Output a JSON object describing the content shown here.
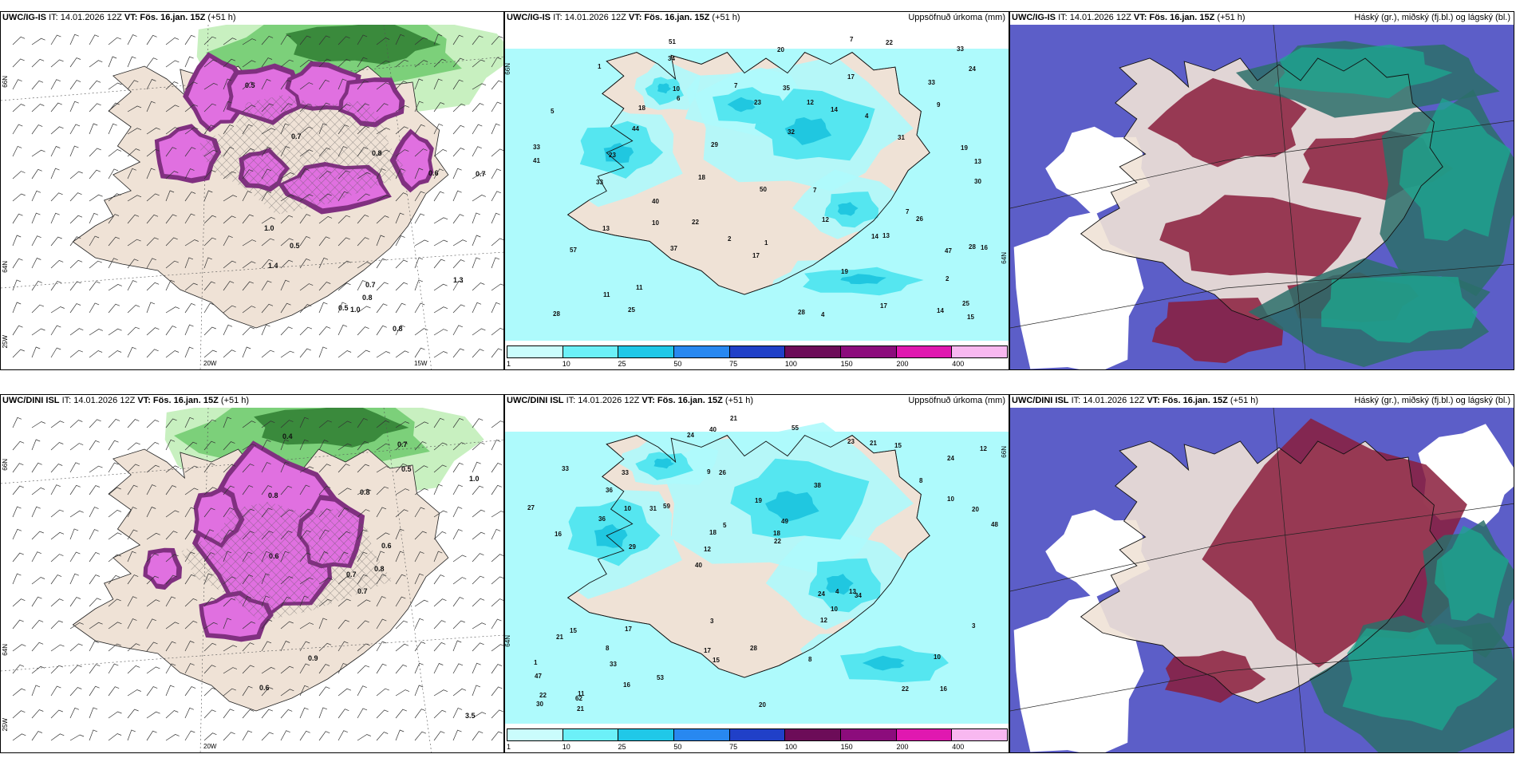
{
  "colors": {
    "land": "#efe2d6",
    "sea": "#ffffff",
    "precip_sea": "#aefafc",
    "precip_mid": "#55e6f0",
    "precip_high": "#20c7e0",
    "wind_green_light": "#c8f0c0",
    "wind_green": "#7cd07a",
    "wind_green_dark": "#3a8a3c",
    "magenta": "#e070e0",
    "magenta_dark": "#803080",
    "cloud_blue": "#5c5ec8",
    "cloud_red": "#8a1d3c",
    "cloud_green": "#1ca890",
    "cloud_teal": "#2b6f6a"
  },
  "rows": [
    {
      "model": "UWC/IG-IS",
      "it_prefix": "IT: 14.01.2026 12Z",
      "vt_label": "VT: Fös. 16.jan. 15Z",
      "lead": "(+51 h)",
      "precip_title": "Uppsöfnuð úrkoma (mm)",
      "cloud_title": "Háský (gr.), miðský (fj.bl.) og lágský (bl.)"
    },
    {
      "model": "UWC/DINI ISL",
      "it_prefix": "IT: 14.01.2026 12Z",
      "vt_label": "VT: Fös. 16.jan. 15Z",
      "lead": "(+51 h)",
      "precip_title": "Uppsöfnuð úrkoma (mm)",
      "cloud_title": "Háský (gr.), miðský (fj.bl.) og lágský (bl.)"
    }
  ],
  "axes": {
    "lat_66": "66N",
    "lat_64": "64N",
    "lon_25": "25W",
    "lon_20": "20W",
    "lon_15": "15W"
  },
  "colorbar": {
    "colors": [
      "#cafcfc",
      "#6cf0f8",
      "#20c8e8",
      "#2888f0",
      "#2040c8",
      "#6c0c58",
      "#8c0c7c",
      "#e018b0",
      "#f8b8f0"
    ],
    "ticks": [
      "1",
      "10",
      "25",
      "50",
      "75",
      "100",
      "150",
      "200",
      "400"
    ]
  },
  "precip_labels_row1": [
    {
      "t": "6"
    },
    {
      "t": "19"
    },
    {
      "t": "14"
    },
    {
      "t": "13"
    },
    {
      "t": "18"
    },
    {
      "t": "28"
    },
    {
      "t": "22"
    },
    {
      "t": "7"
    },
    {
      "t": "47"
    },
    {
      "t": "33"
    },
    {
      "t": "44"
    },
    {
      "t": "26"
    },
    {
      "t": "31"
    },
    {
      "t": "37"
    },
    {
      "t": "57"
    },
    {
      "t": "50"
    },
    {
      "t": "40"
    },
    {
      "t": "33"
    },
    {
      "t": "51"
    },
    {
      "t": "7"
    },
    {
      "t": "25"
    },
    {
      "t": "35"
    },
    {
      "t": "11"
    },
    {
      "t": "13"
    },
    {
      "t": "32"
    },
    {
      "t": "22"
    },
    {
      "t": "28"
    },
    {
      "t": "19"
    },
    {
      "t": "28"
    },
    {
      "t": "24"
    },
    {
      "t": "25"
    },
    {
      "t": "15"
    },
    {
      "t": "33"
    },
    {
      "t": "20"
    },
    {
      "t": "23"
    },
    {
      "t": "41"
    },
    {
      "t": "30"
    },
    {
      "t": "12"
    },
    {
      "t": "9"
    },
    {
      "t": "7"
    },
    {
      "t": "4"
    },
    {
      "t": "5"
    },
    {
      "t": "2"
    },
    {
      "t": "1"
    },
    {
      "t": "2"
    },
    {
      "t": "1"
    },
    {
      "t": "12"
    },
    {
      "t": "4"
    },
    {
      "t": "10"
    },
    {
      "t": "11"
    },
    {
      "t": "14"
    },
    {
      "t": "18"
    },
    {
      "t": "17"
    },
    {
      "t": "17"
    },
    {
      "t": "10"
    },
    {
      "t": "17"
    },
    {
      "t": "23"
    },
    {
      "t": "14"
    },
    {
      "t": "13"
    },
    {
      "t": "7"
    },
    {
      "t": "16"
    },
    {
      "t": "33"
    },
    {
      "t": "29"
    },
    {
      "t": "34"
    }
  ],
  "precip_labels_row2": [
    {
      "t": "16"
    },
    {
      "t": "16"
    },
    {
      "t": "24"
    },
    {
      "t": "40"
    },
    {
      "t": "38"
    },
    {
      "t": "11"
    },
    {
      "t": "9"
    },
    {
      "t": "19"
    },
    {
      "t": "15"
    },
    {
      "t": "59"
    },
    {
      "t": "47"
    },
    {
      "t": "33"
    },
    {
      "t": "26"
    },
    {
      "t": "49"
    },
    {
      "t": "34"
    },
    {
      "t": "33"
    },
    {
      "t": "40"
    },
    {
      "t": "48"
    },
    {
      "t": "24"
    },
    {
      "t": "10"
    },
    {
      "t": "12"
    },
    {
      "t": "17"
    },
    {
      "t": "18"
    },
    {
      "t": "33"
    },
    {
      "t": "23"
    },
    {
      "t": "17"
    },
    {
      "t": "22"
    },
    {
      "t": "10"
    },
    {
      "t": "13"
    },
    {
      "t": "20"
    },
    {
      "t": "31"
    },
    {
      "t": "36"
    },
    {
      "t": "12"
    },
    {
      "t": "16"
    },
    {
      "t": "20"
    },
    {
      "t": "18"
    },
    {
      "t": "22"
    },
    {
      "t": "15"
    },
    {
      "t": "22"
    },
    {
      "t": "21"
    },
    {
      "t": "8"
    },
    {
      "t": "12"
    },
    {
      "t": "10"
    },
    {
      "t": "8"
    },
    {
      "t": "8"
    },
    {
      "t": "21"
    },
    {
      "t": "30"
    },
    {
      "t": "28"
    },
    {
      "t": "15"
    },
    {
      "t": "21"
    },
    {
      "t": "29"
    },
    {
      "t": "27"
    },
    {
      "t": "36"
    },
    {
      "t": "21"
    },
    {
      "t": "62"
    },
    {
      "t": "55"
    },
    {
      "t": "24"
    },
    {
      "t": "5"
    },
    {
      "t": "3"
    },
    {
      "t": "3"
    },
    {
      "t": "53"
    },
    {
      "t": "4"
    },
    {
      "t": "10"
    },
    {
      "t": "1"
    }
  ],
  "wind_labels_row1": [
    "0.5",
    "0.7",
    "0.8",
    "0.5",
    "0.7",
    "1.4",
    "0.8",
    "1.0",
    "0.6",
    "0.7",
    "0.5",
    "1.3",
    "1.0",
    "0.8"
  ],
  "wind_labels_row2": [
    "0.7",
    "0.8",
    "0.7",
    "0.6",
    "0.6",
    "0.9",
    "0.7",
    "0.8",
    "0.5",
    "0.8",
    "0.4",
    "3.5",
    "0.6",
    "1.0"
  ]
}
